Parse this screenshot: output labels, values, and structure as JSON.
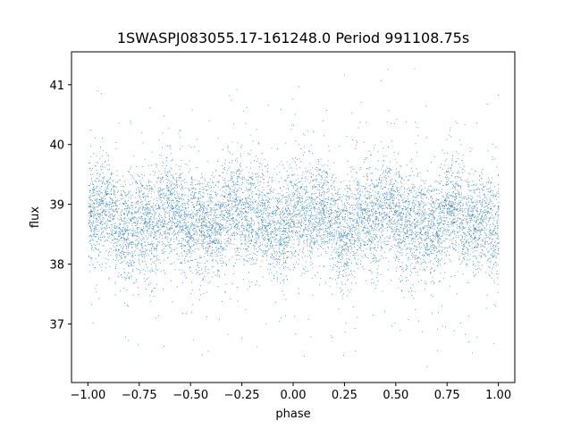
{
  "chart_data": {
    "type": "scatter",
    "title": "1SWASPJ083055.17-161248.0 Period 991108.75s",
    "xlabel": "phase",
    "ylabel": "flux",
    "xlim": [
      -1.08,
      1.08
    ],
    "ylim": [
      36.02,
      41.55
    ],
    "xticks": [
      -1.0,
      -0.75,
      -0.5,
      -0.25,
      0.0,
      0.25,
      0.5,
      0.75,
      1.0
    ],
    "xtick_labels": [
      "−1.00",
      "−0.75",
      "−0.50",
      "−0.25",
      "0.00",
      "0.25",
      "0.50",
      "0.75",
      "1.00"
    ],
    "yticks": [
      37,
      38,
      39,
      40,
      41
    ],
    "ytick_labels": [
      "37",
      "38",
      "39",
      "40",
      "41"
    ],
    "grid": false,
    "legend": "none",
    "marker_color": "#1f77b4",
    "marker": "tiny points",
    "series": [
      {
        "x_range": [
          -1.0,
          1.0
        ],
        "y_center": 38.75,
        "y_core_range": [
          37.9,
          39.6
        ],
        "y_full_range": [
          36.25,
          41.3
        ],
        "n_points_approx": 22000
      }
    ]
  }
}
